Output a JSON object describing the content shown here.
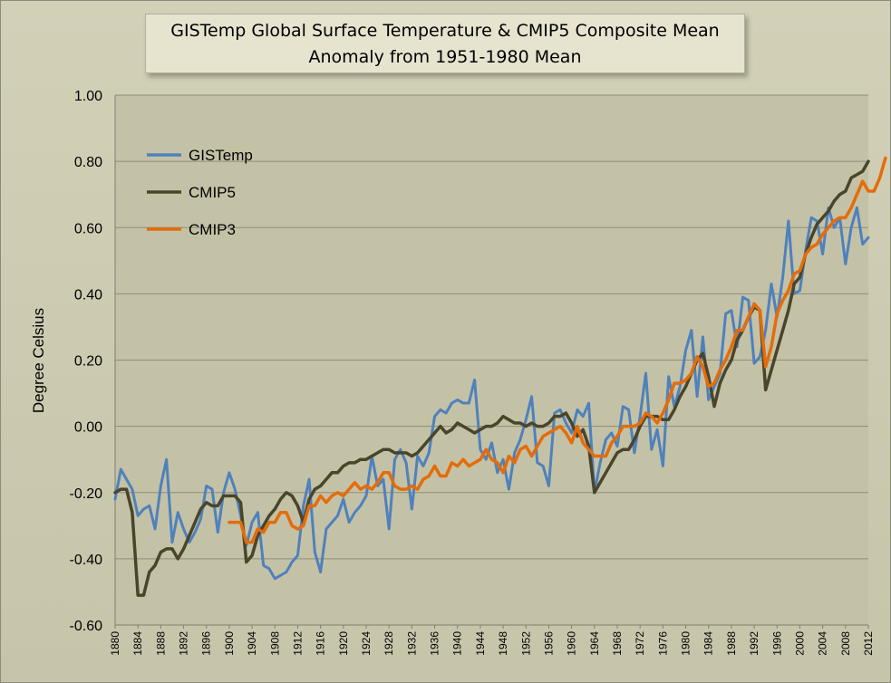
{
  "chart_data": {
    "type": "line",
    "title": "GISTemp Global Surface Temperature & CMIP5 Composite Mean",
    "subtitle": "Anomaly from 1951-1980 Mean",
    "ylabel": "Degree Celsius",
    "xlabel": "",
    "ylim": [
      -0.6,
      1.0
    ],
    "xlim": [
      1880,
      2012
    ],
    "yticks": [
      "1.00",
      "0.80",
      "0.60",
      "0.40",
      "0.20",
      "0.00",
      "-0.20",
      "-0.40",
      "-0.60"
    ],
    "xticks": [
      "1880",
      "1884",
      "1888",
      "1892",
      "1896",
      "1900",
      "1904",
      "1908",
      "1912",
      "1916",
      "1920",
      "1924",
      "1928",
      "1932",
      "1936",
      "1940",
      "1944",
      "1948",
      "1952",
      "1956",
      "1960",
      "1964",
      "1968",
      "1972",
      "1976",
      "1980",
      "1984",
      "1988",
      "1992",
      "1996",
      "2000",
      "2004",
      "2008",
      "2012"
    ],
    "grid": true,
    "legend_position": "top-left",
    "series": [
      {
        "name": "GISTemp",
        "color": "#4f81bd",
        "start_year": 1880,
        "values": [
          -0.22,
          -0.13,
          -0.16,
          -0.19,
          -0.27,
          -0.25,
          -0.24,
          -0.31,
          -0.18,
          -0.1,
          -0.35,
          -0.26,
          -0.31,
          -0.35,
          -0.32,
          -0.28,
          -0.18,
          -0.19,
          -0.32,
          -0.2,
          -0.14,
          -0.19,
          -0.27,
          -0.36,
          -0.29,
          -0.26,
          -0.42,
          -0.43,
          -0.46,
          -0.45,
          -0.44,
          -0.41,
          -0.39,
          -0.24,
          -0.16,
          -0.38,
          -0.44,
          -0.31,
          -0.29,
          -0.27,
          -0.22,
          -0.29,
          -0.26,
          -0.24,
          -0.21,
          -0.09,
          -0.18,
          -0.16,
          -0.31,
          -0.1,
          -0.07,
          -0.11,
          -0.25,
          -0.09,
          -0.12,
          -0.08,
          0.03,
          0.05,
          0.04,
          0.07,
          0.08,
          0.07,
          0.07,
          0.14,
          -0.07,
          -0.1,
          -0.05,
          -0.14,
          -0.1,
          -0.19,
          -0.08,
          -0.04,
          0.02,
          0.09,
          -0.11,
          -0.12,
          -0.18,
          0.04,
          0.05,
          0.01,
          -0.02,
          0.05,
          0.03,
          0.07,
          -0.2,
          -0.11,
          -0.04,
          -0.02,
          -0.06,
          0.06,
          0.05,
          -0.08,
          0.03,
          0.16,
          -0.07,
          -0.01,
          -0.12,
          0.15,
          0.06,
          0.12,
          0.23,
          0.29,
          0.09,
          0.27,
          0.08,
          0.12,
          0.16,
          0.34,
          0.35,
          0.24,
          0.39,
          0.38,
          0.19,
          0.21,
          0.29,
          0.43,
          0.33,
          0.45,
          0.62,
          0.4,
          0.41,
          0.53,
          0.63,
          0.62,
          0.52,
          0.66,
          0.6,
          0.63,
          0.49,
          0.6,
          0.66,
          0.55,
          0.57
        ]
      },
      {
        "name": "CMIP5",
        "color": "#4a452a",
        "start_year": 1880,
        "values": [
          -0.2,
          -0.19,
          -0.19,
          -0.26,
          -0.51,
          -0.51,
          -0.44,
          -0.42,
          -0.38,
          -0.37,
          -0.37,
          -0.4,
          -0.37,
          -0.33,
          -0.29,
          -0.25,
          -0.23,
          -0.24,
          -0.24,
          -0.21,
          -0.21,
          -0.21,
          -0.23,
          -0.41,
          -0.39,
          -0.33,
          -0.3,
          -0.27,
          -0.25,
          -0.22,
          -0.2,
          -0.21,
          -0.24,
          -0.29,
          -0.22,
          -0.19,
          -0.18,
          -0.16,
          -0.14,
          -0.14,
          -0.12,
          -0.11,
          -0.11,
          -0.1,
          -0.1,
          -0.09,
          -0.08,
          -0.07,
          -0.07,
          -0.08,
          -0.08,
          -0.08,
          -0.09,
          -0.08,
          -0.06,
          -0.04,
          -0.02,
          0.0,
          -0.02,
          -0.01,
          0.01,
          0.0,
          -0.01,
          -0.02,
          -0.01,
          0.0,
          0.0,
          0.01,
          0.03,
          0.02,
          0.01,
          0.01,
          0.0,
          0.01,
          0.0,
          0.0,
          0.01,
          0.03,
          0.03,
          0.04,
          0.01,
          -0.03,
          -0.01,
          -0.06,
          -0.2,
          -0.17,
          -0.14,
          -0.11,
          -0.08,
          -0.07,
          -0.07,
          -0.04,
          0.0,
          0.03,
          0.03,
          0.03,
          0.02,
          0.02,
          0.05,
          0.09,
          0.12,
          0.16,
          0.2,
          0.22,
          0.15,
          0.06,
          0.13,
          0.17,
          0.2,
          0.26,
          0.29,
          0.33,
          0.36,
          0.35,
          0.11,
          0.17,
          0.23,
          0.29,
          0.35,
          0.43,
          0.45,
          0.52,
          0.57,
          0.61,
          0.63,
          0.65,
          0.68,
          0.7,
          0.71,
          0.75,
          0.76,
          0.77,
          0.8
        ]
      },
      {
        "name": "CMIP3",
        "color": "#e46c0a",
        "start_year": 1900,
        "values": [
          -0.29,
          -0.29,
          -0.29,
          -0.35,
          -0.35,
          -0.31,
          -0.32,
          -0.29,
          -0.29,
          -0.26,
          -0.26,
          -0.3,
          -0.31,
          -0.3,
          -0.24,
          -0.24,
          -0.21,
          -0.23,
          -0.21,
          -0.2,
          -0.21,
          -0.19,
          -0.17,
          -0.19,
          -0.18,
          -0.19,
          -0.17,
          -0.14,
          -0.14,
          -0.18,
          -0.19,
          -0.19,
          -0.18,
          -0.19,
          -0.16,
          -0.15,
          -0.12,
          -0.15,
          -0.15,
          -0.11,
          -0.12,
          -0.1,
          -0.12,
          -0.11,
          -0.1,
          -0.07,
          -0.1,
          -0.11,
          -0.14,
          -0.09,
          -0.11,
          -0.07,
          -0.06,
          -0.09,
          -0.06,
          -0.03,
          -0.02,
          -0.01,
          0.0,
          -0.02,
          -0.05,
          0.0,
          -0.05,
          -0.07,
          -0.09,
          -0.09,
          -0.09,
          -0.05,
          -0.03,
          0.0,
          0.0,
          0.0,
          0.01,
          0.04,
          0.03,
          0.01,
          0.04,
          0.08,
          0.13,
          0.13,
          0.14,
          0.16,
          0.21,
          0.18,
          0.12,
          0.13,
          0.17,
          0.2,
          0.24,
          0.29,
          0.29,
          0.33,
          0.37,
          0.35,
          0.18,
          0.24,
          0.34,
          0.38,
          0.41,
          0.46,
          0.47,
          0.52,
          0.54,
          0.55,
          0.58,
          0.6,
          0.62,
          0.63,
          0.63,
          0.66,
          0.7,
          0.74,
          0.71,
          0.71,
          0.75,
          0.81
        ]
      }
    ]
  }
}
